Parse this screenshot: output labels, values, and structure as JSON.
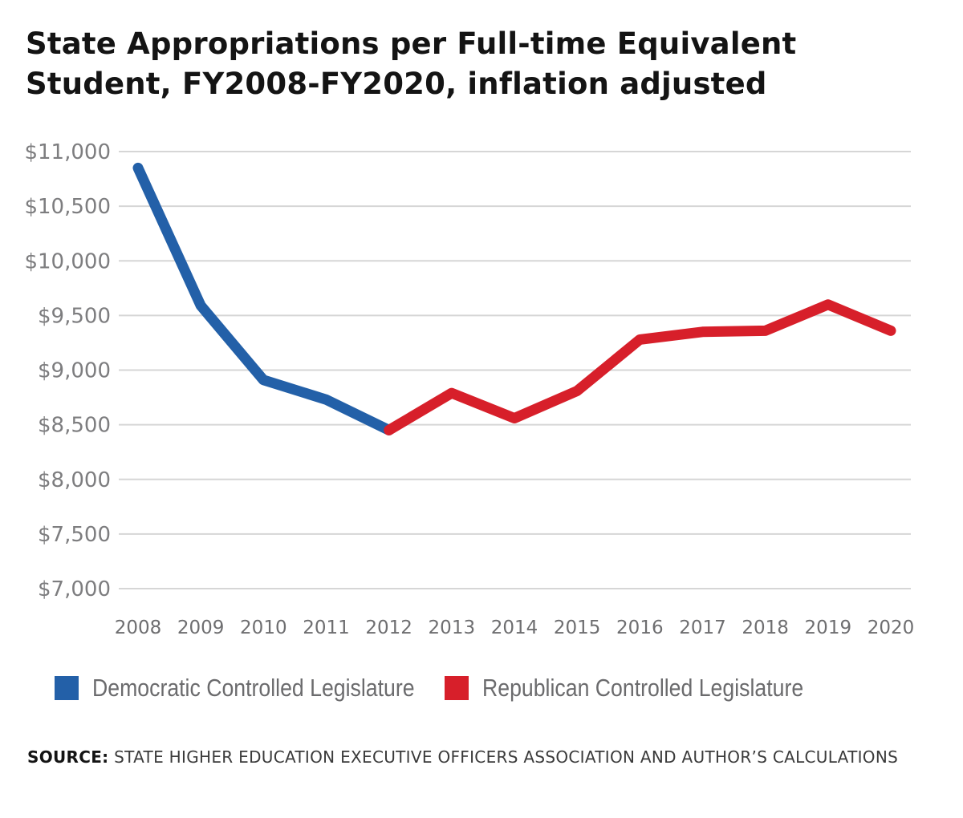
{
  "chart_data": {
    "type": "line",
    "title": "State Appropriations per Full-time Equivalent Student, FY2008-FY2020, inflation adjusted",
    "xlabel": "",
    "ylabel": "",
    "categories": [
      "2008",
      "2009",
      "2010",
      "2011",
      "2012",
      "2013",
      "2014",
      "2015",
      "2016",
      "2017",
      "2018",
      "2019",
      "2020"
    ],
    "values": [
      10850,
      9590,
      8910,
      8730,
      8450,
      8790,
      8560,
      8810,
      9280,
      9350,
      9360,
      9600,
      9360
    ],
    "segments": [
      {
        "name": "Democratic Controlled Legislature",
        "color": "#2360a8",
        "from": "2008",
        "to": "2012"
      },
      {
        "name": "Republican Controlled Legislature",
        "color": "#d71f2a",
        "from": "2012",
        "to": "2020"
      }
    ],
    "ylim": [
      7000,
      11000
    ],
    "yticks": [
      7000,
      7500,
      8000,
      8500,
      9000,
      9500,
      10000,
      10500,
      11000
    ],
    "ytick_labels": [
      "$7,000",
      "$7,500",
      "$8,000",
      "$8,500",
      "$9,000",
      "$9,500",
      "$10,000",
      "$10,500",
      "$11,000"
    ],
    "grid": true,
    "legend": [
      {
        "label": "Democratic Controlled Legislature",
        "color": "#2360a8"
      },
      {
        "label": "Republican Controlled Legislature",
        "color": "#d71f2a"
      }
    ],
    "legend_position": "bottom-left"
  },
  "source": {
    "label": "SOURCE:",
    "text": "STATE HIGHER EDUCATION EXECUTIVE OFFICERS ASSOCIATION AND AUTHOR’S CALCULATIONS"
  }
}
